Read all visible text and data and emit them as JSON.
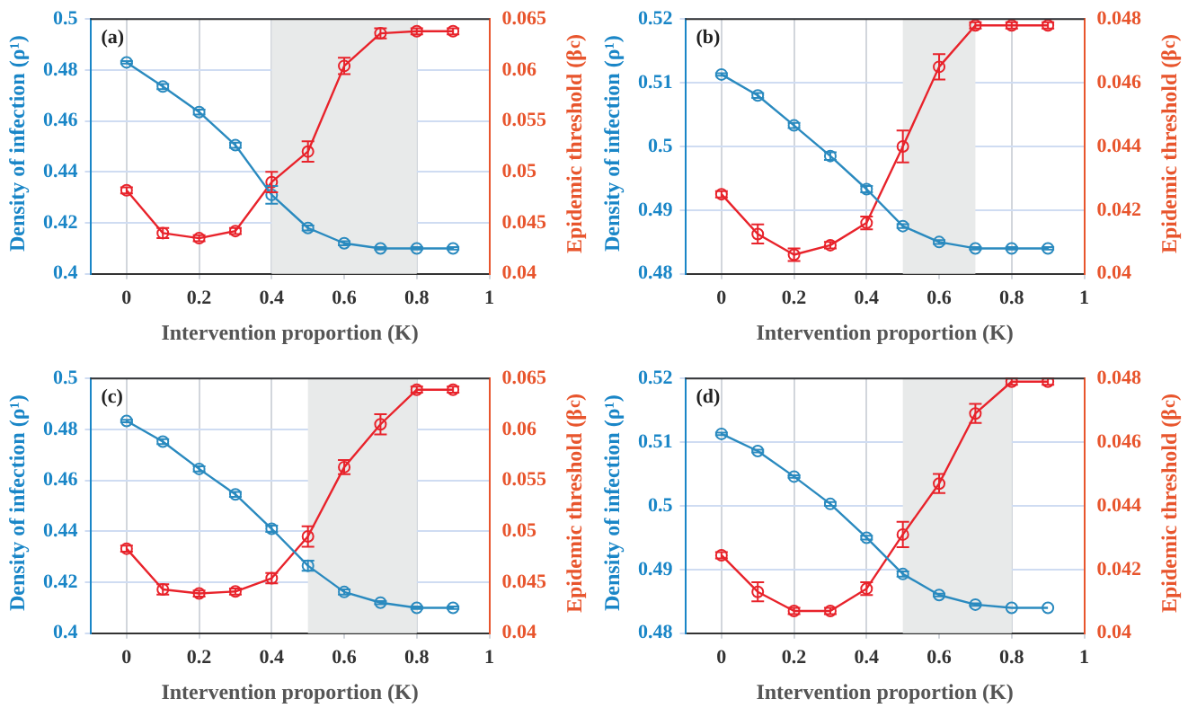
{
  "chart_data": [
    {
      "type": "line",
      "annotations": [
        "(a)"
      ],
      "xlabel": "Intervention proportion (K)",
      "ylabel": "Density of infection (ρ¹)",
      "y2label": "Epidemic threshold (β$_{c}$)",
      "x": [
        0,
        0.1,
        0.2,
        0.3,
        0.4,
        0.5,
        0.6,
        0.7,
        0.8,
        0.9
      ],
      "xlim": [
        -0.1,
        1
      ],
      "xticks": [
        0,
        0.2,
        0.4,
        0.6,
        0.8,
        1
      ],
      "ylim": [
        0.4,
        0.5
      ],
      "yticks": [
        0.4,
        0.42,
        0.44,
        0.46,
        0.48,
        0.5
      ],
      "y2lim": [
        0.04,
        0.065
      ],
      "y2ticks": [
        0.04,
        0.045,
        0.05,
        0.055,
        0.06,
        0.065
      ],
      "grid": true,
      "marker": "circle",
      "line_style": "solid",
      "bands": [
        {
          "axis": "x",
          "from": 0.4,
          "to": 0.8,
          "color": "#e8eaea"
        }
      ],
      "series": [
        {
          "color": "#2a8abf",
          "values": [
            0.483,
            0.4735,
            0.4635,
            0.4505,
            0.431,
            0.418,
            0.412,
            0.41,
            0.41,
            0.41
          ],
          "errors": [
            0.0005,
            0.001,
            0.001,
            0.001,
            0.0035,
            0.001,
            0.0008,
            0.0005,
            0.0005,
            0.0005
          ]
        },
        {
          "color": "#e8232b",
          "axis": "y2",
          "values": [
            0.0482,
            0.044,
            0.0435,
            0.0442,
            0.049,
            0.052,
            0.0604,
            0.0636,
            0.0638,
            0.0638
          ],
          "errors": [
            0.0003,
            0.0005,
            0.0003,
            0.0003,
            0.001,
            0.001,
            0.0008,
            0.0005,
            0.0003,
            0.0003
          ]
        }
      ]
    },
    {
      "type": "line",
      "annotations": [
        "(b)"
      ],
      "xlabel": "Intervention proportion (K)",
      "ylabel": "Density of infection (ρ¹)",
      "y2label": "Epidemic threshold (β$_{c}$)",
      "x": [
        0,
        0.1,
        0.2,
        0.3,
        0.4,
        0.5,
        0.6,
        0.7,
        0.8,
        0.9
      ],
      "xlim": [
        -0.1,
        1
      ],
      "xticks": [
        0,
        0.2,
        0.4,
        0.6,
        0.8,
        1
      ],
      "ylim": [
        0.48,
        0.52
      ],
      "yticks": [
        0.48,
        0.49,
        0.5,
        0.51,
        0.52
      ],
      "y2lim": [
        0.04,
        0.048
      ],
      "y2ticks": [
        0.04,
        0.042,
        0.044,
        0.046,
        0.048
      ],
      "grid": true,
      "marker": "circle",
      "line_style": "solid",
      "bands": [
        {
          "axis": "x",
          "from": 0.5,
          "to": 0.7,
          "color": "#e8eaea"
        }
      ],
      "series": [
        {
          "color": "#2a8abf",
          "values": [
            0.5113,
            0.508,
            0.5033,
            0.4985,
            0.4933,
            0.4875,
            0.485,
            0.484,
            0.484,
            0.484
          ],
          "errors": [
            0.0002,
            0.0004,
            0.0004,
            0.0006,
            0.0005,
            0.0003,
            0.0003,
            0.0002,
            0.0002,
            0.0002
          ]
        },
        {
          "color": "#e8232b",
          "axis": "y2",
          "values": [
            0.0425,
            0.04125,
            0.0406,
            0.0409,
            0.0416,
            0.044,
            0.0465,
            0.0478,
            0.0478,
            0.0478
          ],
          "errors": [
            0.0001,
            0.0003,
            0.0002,
            0.0001,
            0.0002,
            0.0005,
            0.0004,
            0.0001,
            0.0001,
            0.0001
          ]
        }
      ]
    },
    {
      "type": "line",
      "annotations": [
        "(c)"
      ],
      "xlabel": "Intervention proportion (K)",
      "ylabel": "Density of infection (ρ¹)",
      "y2label": "Epidemic threshold (β$_{c}$)",
      "x": [
        0,
        0.1,
        0.2,
        0.3,
        0.4,
        0.5,
        0.6,
        0.7,
        0.8,
        0.9
      ],
      "xlim": [
        -0.1,
        1
      ],
      "xticks": [
        0,
        0.2,
        0.4,
        0.6,
        0.8,
        1
      ],
      "ylim": [
        0.4,
        0.5
      ],
      "yticks": [
        0.4,
        0.42,
        0.44,
        0.46,
        0.48,
        0.5
      ],
      "y2lim": [
        0.04,
        0.065
      ],
      "y2ticks": [
        0.04,
        0.045,
        0.05,
        0.055,
        0.06,
        0.065
      ],
      "grid": true,
      "marker": "circle",
      "line_style": "solid",
      "bands": [
        {
          "axis": "x",
          "from": 0.5,
          "to": 0.8,
          "color": "#e8eaea"
        }
      ],
      "series": [
        {
          "color": "#2a8abf",
          "values": [
            0.4833,
            0.4752,
            0.4645,
            0.4545,
            0.441,
            0.4265,
            0.4162,
            0.412,
            0.41,
            0.41
          ],
          "errors": [
            0.0005,
            0.001,
            0.001,
            0.001,
            0.0012,
            0.002,
            0.001,
            0.0006,
            0.0005,
            0.0005
          ]
        },
        {
          "color": "#e8232b",
          "axis": "y2",
          "values": [
            0.0483,
            0.0443,
            0.0439,
            0.0441,
            0.0454,
            0.0495,
            0.0563,
            0.0605,
            0.0639,
            0.0639
          ],
          "errors": [
            0.0003,
            0.0005,
            0.0003,
            0.0003,
            0.0005,
            0.001,
            0.0007,
            0.001,
            0.0003,
            0.0003
          ]
        }
      ]
    },
    {
      "type": "line",
      "annotations": [
        "(d)"
      ],
      "xlabel": "Intervention proportion (K)",
      "ylabel": "Density of infection (ρ¹)",
      "y2label": "Epidemic threshold (β$_{c}$)",
      "x": [
        0,
        0.1,
        0.2,
        0.3,
        0.4,
        0.5,
        0.6,
        0.7,
        0.8,
        0.9
      ],
      "xlim": [
        -0.1,
        1
      ],
      "xticks": [
        0,
        0.2,
        0.4,
        0.6,
        0.8,
        1
      ],
      "ylim": [
        0.48,
        0.52
      ],
      "yticks": [
        0.48,
        0.49,
        0.5,
        0.51,
        0.52
      ],
      "y2lim": [
        0.04,
        0.048
      ],
      "y2ticks": [
        0.04,
        0.042,
        0.044,
        0.046,
        0.048
      ],
      "grid": true,
      "marker": "circle",
      "line_style": "solid",
      "bands": [
        {
          "axis": "x",
          "from": 0.5,
          "to": 0.8,
          "color": "#e8eaea"
        }
      ],
      "series": [
        {
          "color": "#2a8abf",
          "values": [
            0.5113,
            0.5086,
            0.5046,
            0.5003,
            0.495,
            0.4893,
            0.486,
            0.4845,
            0.484,
            0.484
          ],
          "errors": [
            0.0002,
            0.0002,
            0.0002,
            0.0003,
            0.0003,
            0.0004,
            0.0002,
            0.0002,
            null,
            null
          ]
        },
        {
          "color": "#e8232b",
          "axis": "y2",
          "values": [
            0.04245,
            0.0413,
            0.0407,
            0.0407,
            0.0414,
            0.0431,
            0.0447,
            0.0469,
            0.0479,
            0.0479
          ],
          "errors": [
            0.0001,
            0.0003,
            0.0001,
            0.0001,
            0.0002,
            0.0004,
            0.0003,
            0.0003,
            0.0001,
            0.0001
          ]
        }
      ]
    }
  ]
}
